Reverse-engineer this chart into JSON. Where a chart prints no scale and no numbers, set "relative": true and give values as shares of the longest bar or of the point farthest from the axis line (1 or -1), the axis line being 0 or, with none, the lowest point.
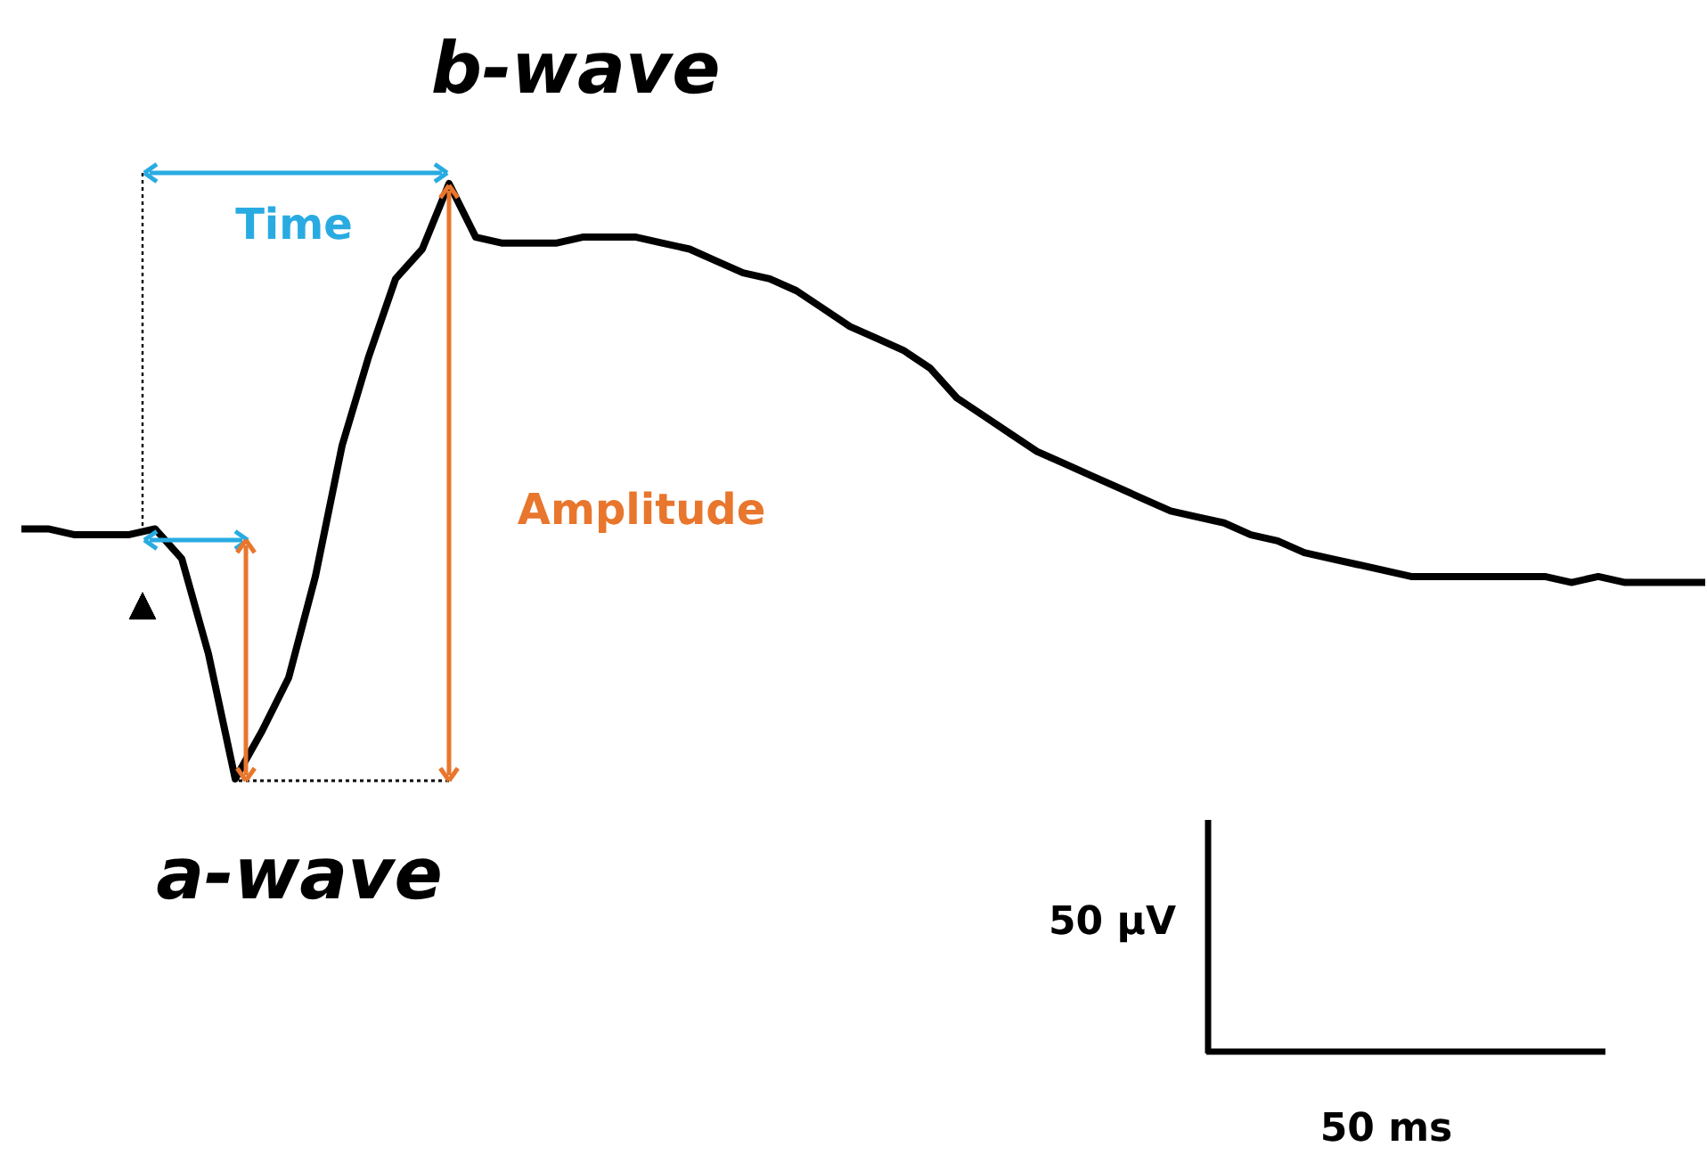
{
  "chart_data": {
    "type": "line",
    "relative": true,
    "categories": [
      null,
      null,
      null,
      null,
      null,
      null,
      null,
      null,
      null,
      null,
      null,
      null,
      null,
      null,
      null,
      null,
      null,
      null,
      null,
      null,
      null,
      null,
      null,
      null,
      null,
      null,
      null,
      null,
      null,
      null,
      null,
      null,
      null,
      null,
      null,
      null,
      null,
      null,
      null,
      null,
      null,
      null,
      null,
      null,
      null,
      null,
      null,
      null,
      null,
      null,
      null,
      null,
      null,
      null,
      null,
      null,
      null,
      null,
      null,
      null,
      null,
      null,
      null,
      null
    ],
    "series": [
      {
        "color": "#000000",
        "values": [
          0.42,
          0.42,
          0.41,
          0.41,
          0.41,
          0.42,
          0.37,
          0.21,
          0,
          0.08,
          0.17,
          0.34,
          0.56,
          0.71,
          0.84,
          0.89,
          1,
          0.91,
          0.9,
          0.9,
          0.9,
          0.91,
          0.91,
          0.91,
          0.9,
          0.89,
          0.87,
          0.85,
          0.84,
          0.82,
          0.79,
          0.76,
          0.74,
          0.72,
          0.69,
          0.64,
          0.61,
          0.58,
          0.55,
          0.53,
          0.51,
          0.49,
          0.47,
          0.45,
          0.44,
          0.43,
          0.41,
          0.4,
          0.38,
          0.37,
          0.36,
          0.35,
          0.34,
          0.34,
          0.34,
          0.34,
          0.34,
          0.34,
          0.33,
          0.34,
          0.33,
          0.33,
          0.33,
          0.33
        ]
      }
    ],
    "annotations": [
      "b-wave",
      "a-wave",
      "Time",
      "Amplitude",
      "50 µV",
      "50 ms"
    ]
  }
}
